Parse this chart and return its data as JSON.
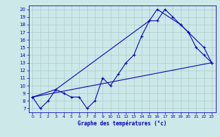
{
  "title": "Graphe des températures (°c)",
  "bg_color": "#cce8e8",
  "grid_color": "#aacccc",
  "line_color": "#0000bb",
  "xlim": [
    -0.5,
    23.5
  ],
  "ylim": [
    6.5,
    20.5
  ],
  "xticks": [
    0,
    1,
    2,
    3,
    4,
    5,
    6,
    7,
    8,
    9,
    10,
    11,
    12,
    13,
    14,
    15,
    16,
    17,
    18,
    19,
    20,
    21,
    22,
    23
  ],
  "yticks": [
    7,
    8,
    9,
    10,
    11,
    12,
    13,
    14,
    15,
    16,
    17,
    18,
    19,
    20
  ],
  "series1_x": [
    0,
    1,
    2,
    3,
    4,
    5,
    6,
    7,
    8,
    9,
    10,
    11,
    12,
    13,
    14,
    15,
    16,
    17,
    18,
    19,
    20,
    21,
    22,
    23
  ],
  "series1_y": [
    8.5,
    7.0,
    8.0,
    9.5,
    9.0,
    8.5,
    8.5,
    7.0,
    8.0,
    11.0,
    10.0,
    11.5,
    13.0,
    14.0,
    16.5,
    18.5,
    18.5,
    20.0,
    19.0,
    18.0,
    17.0,
    15.0,
    14.0,
    13.0
  ],
  "series2_x": [
    0,
    3,
    15,
    16,
    19,
    20,
    22,
    23
  ],
  "series2_y": [
    8.5,
    9.5,
    18.5,
    20.0,
    18.0,
    17.0,
    15.0,
    13.0
  ],
  "series3_x": [
    0,
    23
  ],
  "series3_y": [
    8.5,
    13.0
  ]
}
